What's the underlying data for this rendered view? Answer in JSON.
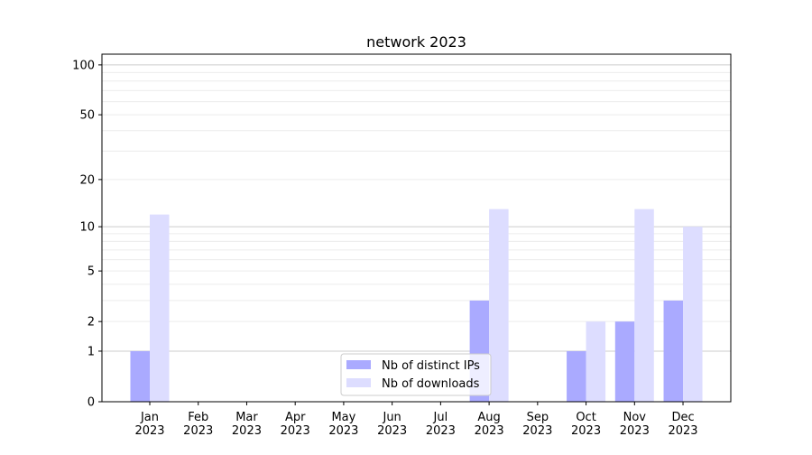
{
  "chart_data": {
    "type": "bar",
    "title": "network 2023",
    "xlabel": "",
    "ylabel": "",
    "yscale": "symlog (log of 1+y)",
    "ylim": [
      0,
      116
    ],
    "yticks": [
      0,
      1,
      2,
      5,
      10,
      20,
      50,
      100
    ],
    "grid": true,
    "legend_position": "bottom-center",
    "categories": [
      "Jan\n2023",
      "Feb\n2023",
      "Mar\n2023",
      "Apr\n2023",
      "May\n2023",
      "Jun\n2023",
      "Jul\n2023",
      "Aug\n2023",
      "Sep\n2023",
      "Oct\n2023",
      "Nov\n2023",
      "Dec\n2023"
    ],
    "series": [
      {
        "name": "Nb of distinct IPs",
        "color": "#aaaaff",
        "values": [
          1,
          0,
          0,
          0,
          0,
          0,
          0,
          3,
          0,
          1,
          2,
          3
        ]
      },
      {
        "name": "Nb of downloads",
        "color": "#ddddff",
        "values": [
          12,
          0,
          0,
          0,
          0,
          0,
          0,
          13,
          0,
          2,
          13,
          10
        ]
      }
    ]
  }
}
